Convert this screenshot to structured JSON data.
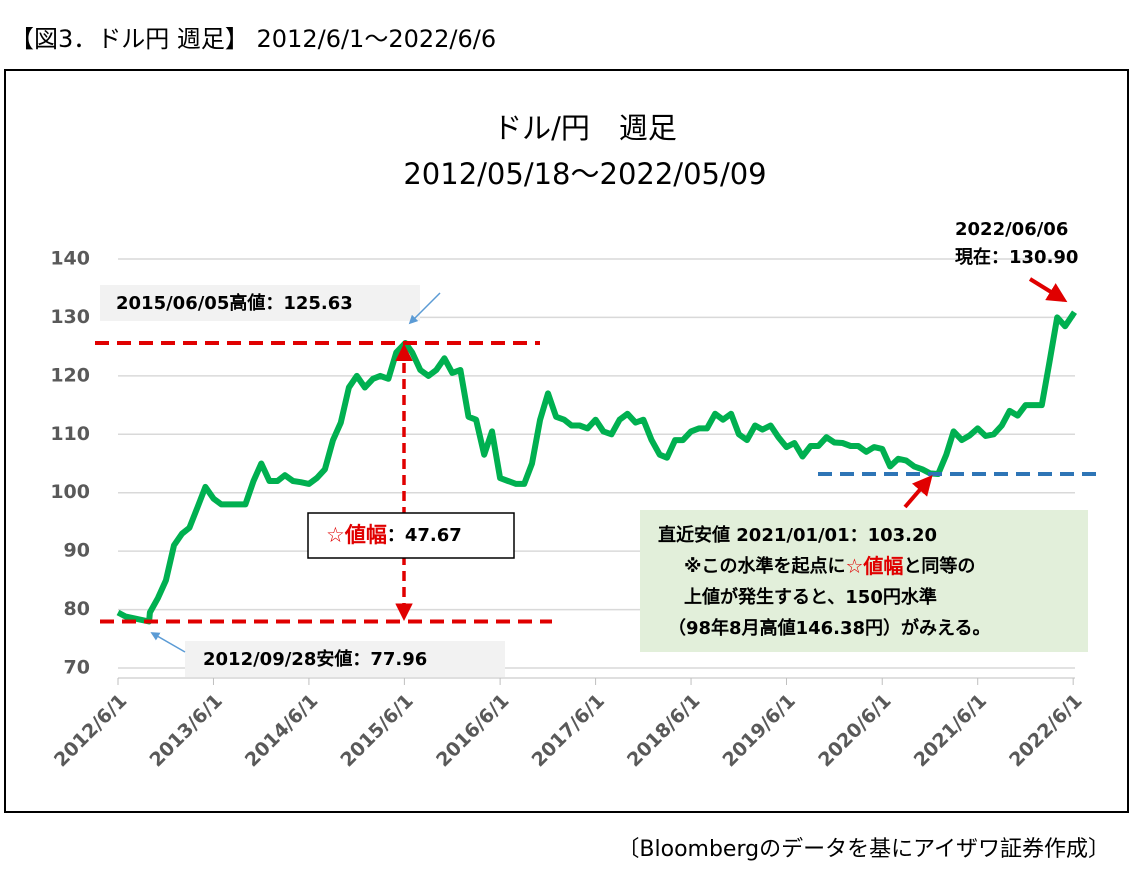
{
  "header": "【図3．ドル円 週足】 2012/6/1～2022/6/6",
  "footer": "〔Bloombergのデータを基にアイザワ証券作成〕",
  "chart_data": {
    "type": "line",
    "title": "ドル/円　週足",
    "subtitle": "2012/05/18～2022/05/09",
    "xlim": [
      "2012/6/1",
      "2022/6/8"
    ],
    "xticks": [
      "2012/6/1",
      "2013/6/1",
      "2014/6/1",
      "2015/6/1",
      "2016/6/1",
      "2017/6/1",
      "2018/6/1",
      "2019/6/1",
      "2020/6/1",
      "2021/6/1",
      "2022/6/1"
    ],
    "ylim": [
      70,
      140
    ],
    "yticks": [
      70,
      80,
      90,
      100,
      110,
      120,
      130,
      140
    ],
    "grid": true,
    "series": [
      {
        "name": "ドル/円",
        "color": "#00b050",
        "x": [
          "2012/6/1",
          "2012/7/1",
          "2012/8/1",
          "2012/9/28",
          "2012/10/1",
          "2012/11/1",
          "2012/12/1",
          "2013/1/1",
          "2013/2/1",
          "2013/3/1",
          "2013/4/1",
          "2013/5/1",
          "2013/6/1",
          "2013/7/1",
          "2013/8/1",
          "2013/9/1",
          "2013/10/1",
          "2013/11/1",
          "2013/12/1",
          "2014/1/1",
          "2014/2/1",
          "2014/3/1",
          "2014/4/1",
          "2014/5/1",
          "2014/6/1",
          "2014/7/1",
          "2014/8/1",
          "2014/9/1",
          "2014/10/1",
          "2014/11/1",
          "2014/12/1",
          "2015/1/1",
          "2015/2/1",
          "2015/3/1",
          "2015/4/1",
          "2015/5/1",
          "2015/6/5",
          "2015/7/1",
          "2015/8/1",
          "2015/9/1",
          "2015/10/1",
          "2015/11/1",
          "2015/12/1",
          "2016/1/1",
          "2016/2/1",
          "2016/3/1",
          "2016/4/1",
          "2016/5/1",
          "2016/6/1",
          "2016/7/1",
          "2016/8/1",
          "2016/9/1",
          "2016/10/1",
          "2016/11/1",
          "2016/12/1",
          "2017/1/1",
          "2017/2/1",
          "2017/3/1",
          "2017/4/1",
          "2017/5/1",
          "2017/6/1",
          "2017/7/1",
          "2017/8/1",
          "2017/9/1",
          "2017/10/1",
          "2017/11/1",
          "2017/12/1",
          "2018/1/1",
          "2018/2/1",
          "2018/3/1",
          "2018/4/1",
          "2018/5/1",
          "2018/6/1",
          "2018/7/1",
          "2018/8/1",
          "2018/9/1",
          "2018/10/1",
          "2018/11/1",
          "2018/12/1",
          "2019/1/1",
          "2019/2/1",
          "2019/3/1",
          "2019/4/1",
          "2019/5/1",
          "2019/6/1",
          "2019/7/1",
          "2019/8/1",
          "2019/9/1",
          "2019/10/1",
          "2019/11/1",
          "2019/12/1",
          "2020/1/1",
          "2020/2/1",
          "2020/3/1",
          "2020/4/1",
          "2020/5/1",
          "2020/6/1",
          "2020/7/1",
          "2020/8/1",
          "2020/9/1",
          "2020/10/1",
          "2020/11/1",
          "2020/12/1",
          "2021/1/1",
          "2021/2/1",
          "2021/3/1",
          "2021/4/1",
          "2021/5/1",
          "2021/6/1",
          "2021/7/1",
          "2021/8/1",
          "2021/9/1",
          "2021/10/1",
          "2021/11/1",
          "2021/12/1",
          "2022/1/1",
          "2022/2/1",
          "2022/3/1",
          "2022/4/1",
          "2022/5/1",
          "2022/6/6"
        ],
        "values": [
          79.5,
          78.8,
          78.5,
          77.96,
          79.5,
          82,
          85,
          91,
          93,
          94,
          97.5,
          101,
          99,
          98,
          98,
          98,
          98,
          102,
          105,
          102,
          102,
          103,
          102,
          101.8,
          101.5,
          102.5,
          104,
          109,
          112,
          118,
          120,
          118,
          119.5,
          120,
          119.5,
          124,
          125.63,
          124,
          121,
          120,
          121,
          123,
          120.5,
          121,
          113,
          112.5,
          106.5,
          110.5,
          102.5,
          102,
          101.5,
          101.5,
          105,
          112.5,
          117,
          113,
          112.5,
          111.5,
          111.5,
          111,
          112.5,
          110.5,
          110,
          112.5,
          113.5,
          112,
          112.5,
          109,
          106.5,
          106,
          109,
          109,
          110.5,
          111,
          111,
          113.5,
          112.5,
          113.5,
          110,
          109,
          111.5,
          110.8,
          111.5,
          109.5,
          107.8,
          108.5,
          106.2,
          108,
          108,
          109.5,
          108.6,
          108.5,
          108,
          108,
          107,
          107.8,
          107.5,
          104.5,
          105.8,
          105.5,
          104.5,
          104,
          103.3,
          103.2,
          106.5,
          110.5,
          109,
          109.8,
          111,
          109.7,
          110,
          111.5,
          114,
          113.2,
          115,
          115,
          115,
          122,
          130,
          128.5,
          130.9
        ]
      }
    ],
    "annotations": {
      "high": "2015/06/05高値：125.63",
      "low": "2012/09/28安値：77.96",
      "range": [
        "☆値幅",
        "：47.67"
      ],
      "current": [
        "2022/06/06",
        "現在：130.90"
      ],
      "note": [
        [
          "直近安値 2021/01/01：103.20"
        ],
        [
          "※この水準を起点に",
          "☆値幅",
          "と同等の"
        ],
        [
          "上値が発生すると、150円水準"
        ],
        [
          "（98年8月高値146.38円）がみえる。"
        ]
      ]
    }
  }
}
